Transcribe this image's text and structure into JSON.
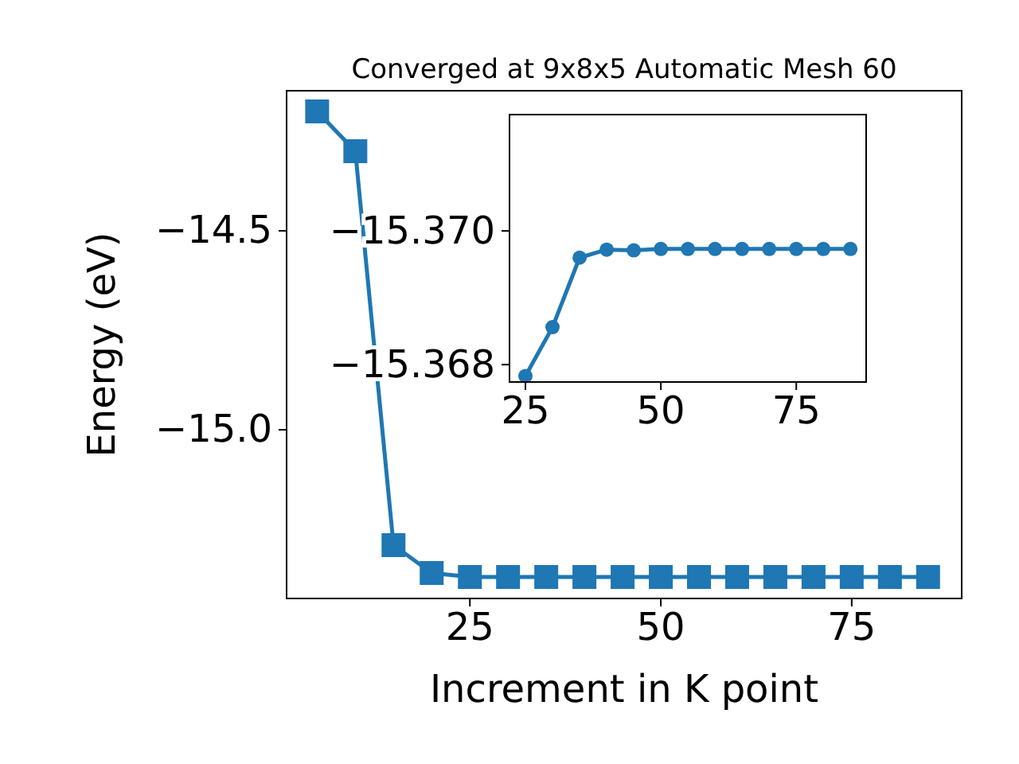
{
  "chart_data": [
    {
      "type": "line",
      "title": "Converged at 9x8x5 Automatic Mesh 60",
      "xlabel": "Increment in K point",
      "ylabel": "Energy (eV)",
      "x": [
        5,
        10,
        15,
        20,
        25,
        30,
        35,
        40,
        45,
        50,
        55,
        60,
        65,
        70,
        75,
        80,
        85
      ],
      "series": [
        {
          "color": "#1f77b4",
          "values": [
            -14.2,
            -14.3,
            -15.29,
            -15.36,
            -15.37,
            -15.37,
            -15.37,
            -15.37,
            -15.37,
            -15.37,
            -15.37,
            -15.37,
            -15.37,
            -15.37,
            -15.37,
            -15.37,
            -15.37
          ]
        }
      ],
      "xlim": [
        1,
        89.4
      ],
      "ylim": [
        -15.424,
        -14.148
      ],
      "xticks": [
        25,
        50,
        75
      ],
      "yticks": [
        {
          "value": -15,
          "label": "−15.0"
        },
        {
          "value": -14.5,
          "label": "−14.5"
        }
      ],
      "grid": false,
      "marker": "square",
      "line_style": "solid"
    },
    {
      "type": "line",
      "x": [
        25,
        30,
        35,
        40,
        45,
        50,
        55,
        60,
        65,
        70,
        75,
        80,
        85
      ],
      "series": [
        {
          "color": "#1f77b4",
          "values": [
            -15.36783,
            -15.36856,
            -15.3696,
            -15.36972,
            -15.36971,
            -15.36973,
            -15.36973,
            -15.36973,
            -15.36973,
            -15.36973,
            -15.36973,
            -15.36973,
            -15.36973
          ]
        }
      ],
      "xlim": [
        22.06,
        87.9
      ],
      "ylim": [
        -15.36774,
        -15.37174
      ],
      "xticks": [
        25,
        50,
        75
      ],
      "yticks": [
        {
          "value": -15.368,
          "label": "−15.368"
        },
        {
          "value": -15.37,
          "label": "−15.370"
        }
      ],
      "grid": false,
      "marker": "circle",
      "line_style": "solid"
    }
  ]
}
